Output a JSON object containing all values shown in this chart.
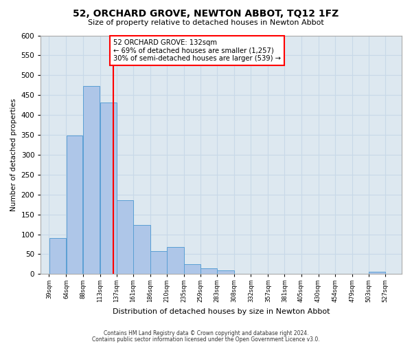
{
  "title": "52, ORCHARD GROVE, NEWTON ABBOT, TQ12 1FZ",
  "subtitle": "Size of property relative to detached houses in Newton Abbot",
  "xlabel": "Distribution of detached houses by size in Newton Abbot",
  "ylabel": "Number of detached properties",
  "bar_left_edges": [
    39,
    64,
    88,
    113,
    137,
    161,
    186,
    210,
    235,
    259,
    283,
    308,
    332,
    357,
    381,
    405,
    430,
    454,
    479,
    503
  ],
  "bar_widths": [
    25,
    24,
    25,
    24,
    24,
    25,
    24,
    25,
    24,
    24,
    25,
    24,
    25,
    24,
    24,
    25,
    24,
    25,
    24,
    24
  ],
  "bar_heights": [
    90,
    348,
    472,
    432,
    185,
    123,
    57,
    68,
    25,
    14,
    9,
    0,
    0,
    0,
    0,
    0,
    0,
    0,
    0,
    5
  ],
  "bar_color": "#aec6e8",
  "bar_edgecolor": "#5a9fd4",
  "tick_labels": [
    "39sqm",
    "64sqm",
    "88sqm",
    "113sqm",
    "137sqm",
    "161sqm",
    "186sqm",
    "210sqm",
    "235sqm",
    "259sqm",
    "283sqm",
    "308sqm",
    "332sqm",
    "357sqm",
    "381sqm",
    "405sqm",
    "430sqm",
    "454sqm",
    "479sqm",
    "503sqm",
    "527sqm"
  ],
  "ylim": [
    0,
    600
  ],
  "yticks": [
    0,
    50,
    100,
    150,
    200,
    250,
    300,
    350,
    400,
    450,
    500,
    550,
    600
  ],
  "marker_x": 132,
  "marker_label_line1": "52 ORCHARD GROVE: 132sqm",
  "marker_label_line2": "← 69% of detached houses are smaller (1,257)",
  "marker_label_line3": "30% of semi-detached houses are larger (539) →",
  "grid_color": "#c8d8e8",
  "bg_color": "#dde8f0",
  "fig_color": "#ffffff",
  "footer1": "Contains HM Land Registry data © Crown copyright and database right 2024.",
  "footer2": "Contains public sector information licensed under the Open Government Licence v3.0.",
  "xlim_left": 27,
  "xlim_right": 551
}
